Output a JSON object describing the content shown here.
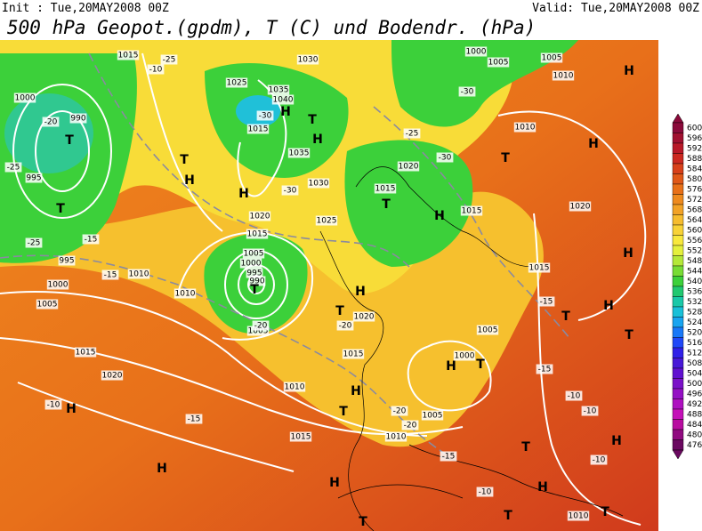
{
  "header": {
    "init": "Init : Tue,20MAY2008 00Z",
    "valid": "Valid: Tue,20MAY2008 00Z",
    "title": "500 hPa Geopot.(gpdm), T (C) und Bodendr. (hPa)"
  },
  "colorbar": {
    "ticks": [
      600,
      596,
      592,
      588,
      584,
      580,
      576,
      572,
      568,
      564,
      560,
      556,
      552,
      548,
      544,
      540,
      536,
      532,
      528,
      524,
      520,
      516,
      512,
      508,
      504,
      500,
      496,
      492,
      488,
      484,
      480,
      476
    ],
    "colors": [
      "#8a0a3a",
      "#a01030",
      "#b81828",
      "#cc2820",
      "#d8401a",
      "#e05818",
      "#e87018",
      "#ee8a1e",
      "#f2a226",
      "#f6bc2e",
      "#f8d236",
      "#f8e83c",
      "#e4f03c",
      "#b4e838",
      "#78dc34",
      "#3cd03a",
      "#20c870",
      "#18c8a8",
      "#18c0d8",
      "#18a4f0",
      "#1878f8",
      "#2048f8",
      "#3020e8",
      "#4818d8",
      "#6010d0",
      "#7a10c8",
      "#9410c4",
      "#ae10c0",
      "#c410b8",
      "#b80ca0",
      "#900a80",
      "#6a0860"
    ]
  },
  "map_labels": [
    "1015",
    "-25",
    "-10",
    "1030",
    "1000",
    "1005",
    "1005",
    "1010",
    "H",
    "1000",
    "-20",
    "990",
    "T",
    "1025",
    "1040",
    "1035",
    "H",
    "T",
    "1015",
    "-30",
    "H",
    "1035",
    "-30",
    "-25",
    "1010",
    "H",
    "T",
    "-25",
    "995",
    "T",
    "H",
    "-30",
    "1030",
    "1020",
    "1015",
    "T",
    "H",
    "1015",
    "1020",
    "T",
    "-25",
    "-15",
    "H",
    "1020",
    "1015",
    "1025",
    "-30",
    "995",
    "1000",
    "1010",
    "1005",
    "1000",
    "995",
    "990",
    "T",
    "1010",
    "H",
    "T",
    "1020",
    "-20",
    "-15",
    "1005",
    "1015",
    "1020",
    "1010",
    "-10",
    "H",
    "-15",
    "1015",
    "H",
    "H",
    "T",
    "H",
    "T",
    "1015",
    "1005",
    "1000",
    "H",
    "T",
    "-20",
    "1005",
    "1010",
    "-20",
    "-15",
    "-15",
    "-15",
    "1015",
    "T",
    "H",
    "T",
    "H",
    "-10",
    "-10",
    "T",
    "H",
    "-10",
    "-10",
    "T",
    "H",
    "T",
    "1010",
    "1005",
    "-20"
  ]
}
